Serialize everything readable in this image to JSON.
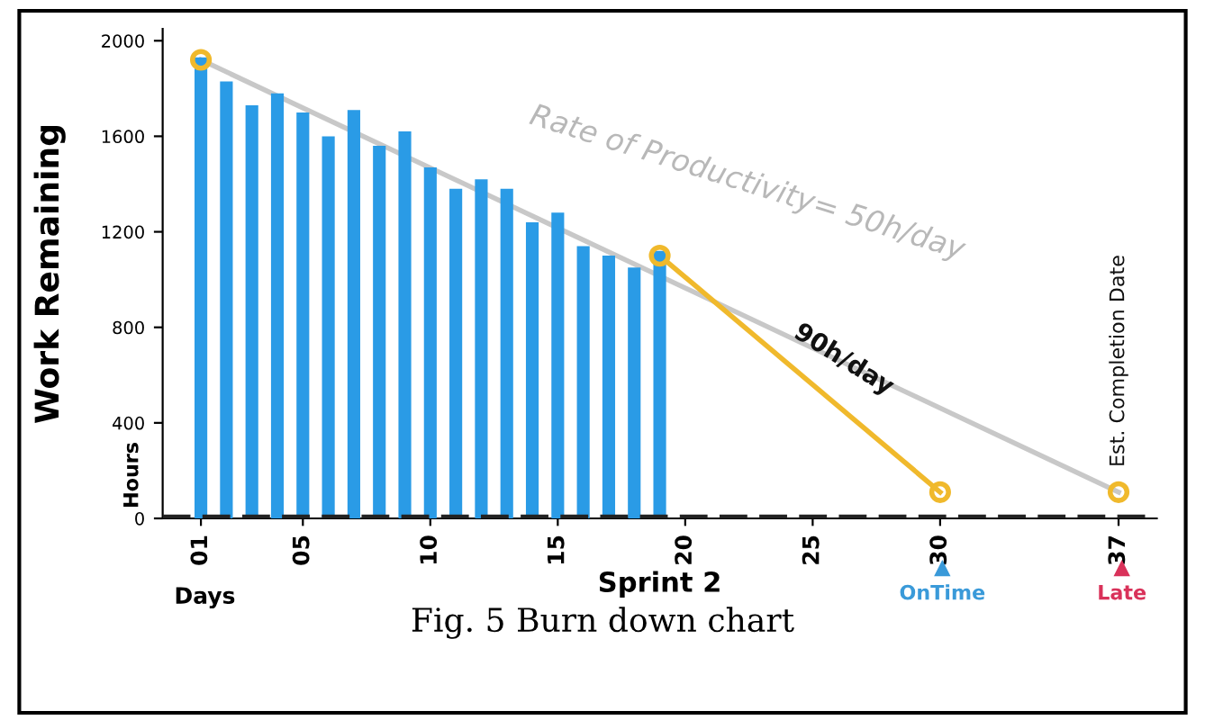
{
  "chart_data": {
    "type": "bar",
    "xlabel": "Sprint 2",
    "ylabel": "Work Remaining",
    "x": [
      1,
      2,
      3,
      4,
      5,
      6,
      7,
      8,
      9,
      10,
      11,
      12,
      13,
      14,
      15,
      16,
      17,
      18,
      19
    ],
    "series": [
      {
        "color": "#2a9be6",
        "values": [
          1930,
          1830,
          1730,
          1780,
          1700,
          1600,
          1710,
          1560,
          1620,
          1470,
          1380,
          1420,
          1380,
          1240,
          1280,
          1140,
          1100,
          1050,
          1120
        ]
      },
      {
        "type": "line",
        "color": "#c8c8c8",
        "x": [
          1,
          37
        ],
        "values": [
          1920,
          110
        ]
      },
      {
        "type": "line",
        "color": "#f0b92c",
        "x": [
          19,
          30
        ],
        "values": [
          1100,
          110
        ]
      },
      {
        "type": "scatter",
        "color": "#f0b92c",
        "marker": "circle",
        "x": [
          1,
          19,
          30,
          37
        ],
        "values": [
          1920,
          1100,
          110,
          110
        ]
      }
    ],
    "xlim": [
      -0.5,
      38.5
    ],
    "ylim": [
      0,
      2050
    ],
    "xticks": [
      {
        "value": 1,
        "label": "01"
      },
      {
        "value": 5,
        "label": "05"
      },
      10,
      15,
      20,
      25,
      30,
      37
    ],
    "yticks": [
      0,
      400,
      800,
      1200,
      1600,
      2000
    ],
    "ref_lines": [
      {
        "axis": "y",
        "value": 0,
        "color": "#222222",
        "line_style": "dashed"
      }
    ],
    "grid": false,
    "annotations": [
      "Rate of Productivity= 50h/day",
      "90h/day",
      {
        "text": "Est. Completion Date",
        "x": 37,
        "y": 110
      },
      "Hours",
      "Days",
      "OnTime",
      "Late",
      "Fig. 5 Burn down chart"
    ]
  }
}
